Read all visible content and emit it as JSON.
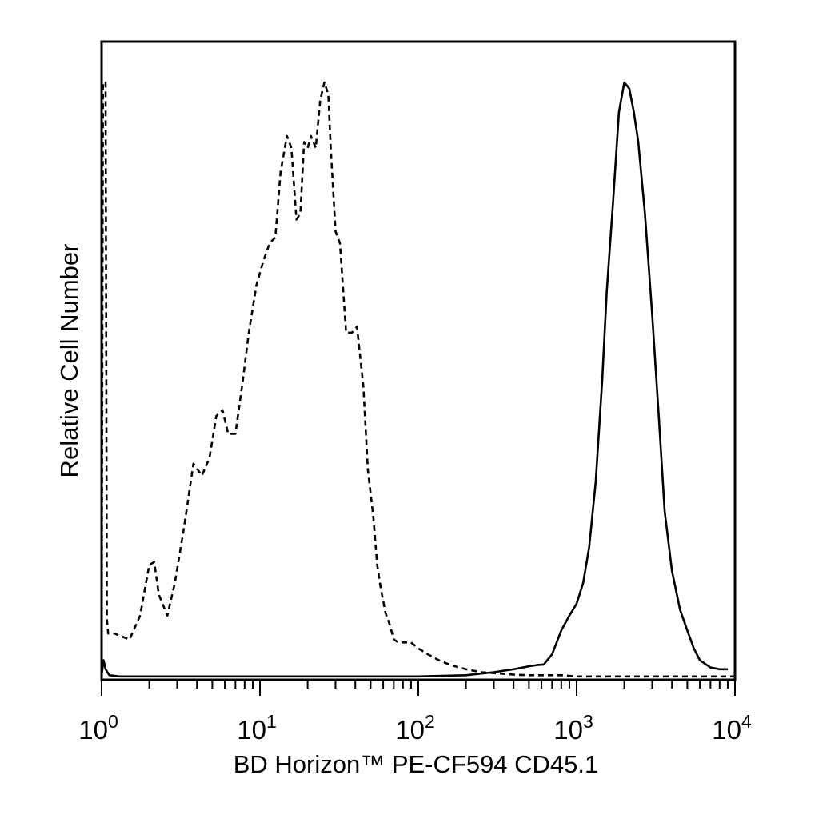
{
  "chart_data": {
    "type": "line",
    "title": "",
    "xlabel": "BD Horizon™ PE-CF594 CD45.1",
    "ylabel": "Relative Cell Number",
    "x_scale": "log",
    "xlim": [
      1,
      10000
    ],
    "ylim": [
      0,
      100
    ],
    "x_ticks": [
      {
        "value": 1,
        "base": "10",
        "exp": "0"
      },
      {
        "value": 10,
        "base": "10",
        "exp": "1"
      },
      {
        "value": 100,
        "base": "10",
        "exp": "2"
      },
      {
        "value": 1000,
        "base": "10",
        "exp": "3"
      },
      {
        "value": 10000,
        "base": "10",
        "exp": "4"
      }
    ],
    "grid": false,
    "series": [
      {
        "line_style": "dashed",
        "color": "#000000",
        "x": [
          1.0,
          1.02,
          1.04,
          1.06,
          1.08,
          1.1,
          1.2,
          1.5,
          1.75,
          2.0,
          2.15,
          2.3,
          2.6,
          2.9,
          3.3,
          3.8,
          4.3,
          4.8,
          5.3,
          5.8,
          6.3,
          7.0,
          7.8,
          8.5,
          9.5,
          10.5,
          11.5,
          12.5,
          13.5,
          14.8,
          15.8,
          17.0,
          18.0,
          19.0,
          20.0,
          21.0,
          22.5,
          24.0,
          25.5,
          27.0,
          28.0,
          30.0,
          32.0,
          35.0,
          38.0,
          41.0,
          45.0,
          48.0,
          52.0,
          55.0,
          58.0,
          62.0,
          66.0,
          70.0,
          75.0,
          82.0,
          90.0,
          100.0,
          115.0,
          135.0,
          160.0,
          200.0,
          250.0,
          320.0,
          400.0,
          500.0,
          650.0,
          800.0,
          1000.0,
          1500.0,
          2000.0,
          3000.0,
          5000.0,
          10000.0
        ],
        "y": [
          0.5,
          100,
          100,
          100,
          10,
          7.5,
          7.5,
          6.5,
          10.5,
          19.0,
          19.5,
          14.0,
          10.5,
          16.0,
          25.0,
          36.0,
          34.0,
          37.0,
          44.0,
          45.0,
          41.0,
          41.0,
          50.0,
          58.0,
          66.0,
          70.0,
          73.0,
          74.0,
          85.0,
          91.0,
          89.0,
          77.0,
          78.0,
          90.0,
          89.0,
          91.0,
          89.0,
          97.0,
          100.0,
          98.0,
          89.0,
          75.0,
          73.0,
          58.0,
          58.0,
          59.0,
          49.0,
          35.0,
          27.0,
          19.0,
          15.0,
          11.0,
          9.0,
          6.5,
          6.0,
          6.0,
          6.0,
          5.0,
          4.0,
          3.0,
          2.2,
          1.5,
          1.0,
          0.8,
          0.6,
          0.5,
          0.5,
          0.5,
          0.3,
          0.3,
          0.3,
          0.3,
          0.3,
          0.3
        ]
      },
      {
        "line_style": "solid",
        "color": "#000000",
        "x": [
          1.0,
          1.03,
          1.06,
          1.12,
          1.3,
          2.0,
          5.0,
          20.0,
          100.0,
          200.0,
          300.0,
          400.0,
          500.0,
          560.0,
          620.0,
          700.0,
          800.0,
          900.0,
          1000.0,
          1100.0,
          1200.0,
          1320.0,
          1450.0,
          1550.0,
          1700.0,
          1850.0,
          2000.0,
          2150.0,
          2300.0,
          2450.0,
          2700.0,
          3000.0,
          3300.0,
          3600.0,
          4000.0,
          4500.0,
          5000.0,
          5500.0,
          6000.0,
          7000.0,
          8000.0,
          9000.0
        ],
        "y": [
          0.5,
          3.0,
          1.5,
          0.5,
          0.3,
          0.3,
          0.3,
          0.3,
          0.3,
          0.5,
          1.0,
          1.5,
          2.0,
          2.2,
          2.3,
          4.0,
          8.0,
          10.5,
          12.5,
          16.0,
          22.0,
          33.0,
          50.0,
          65.0,
          80.0,
          95.0,
          100.0,
          99.0,
          95.0,
          90.0,
          78.0,
          61.0,
          44.0,
          28.0,
          18.0,
          11.5,
          8.0,
          5.0,
          3.0,
          1.8,
          1.5,
          1.5
        ]
      }
    ]
  }
}
